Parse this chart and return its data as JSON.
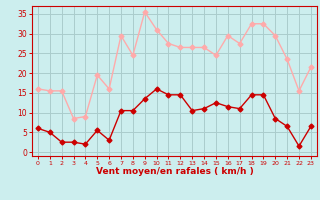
{
  "x": [
    0,
    1,
    2,
    3,
    4,
    5,
    6,
    7,
    8,
    9,
    10,
    11,
    12,
    13,
    14,
    15,
    16,
    17,
    18,
    19,
    20,
    21,
    22,
    23
  ],
  "mean_wind": [
    6,
    5,
    2.5,
    2.5,
    2,
    5.5,
    3,
    10.5,
    10.5,
    13.5,
    16,
    14.5,
    14.5,
    10.5,
    11,
    12.5,
    11.5,
    11,
    14.5,
    14.5,
    8.5,
    6.5,
    1.5,
    6.5
  ],
  "gust_wind": [
    16,
    15.5,
    15.5,
    8.5,
    9,
    19.5,
    16,
    29.5,
    24.5,
    35.5,
    31,
    27.5,
    26.5,
    26.5,
    26.5,
    24.5,
    29.5,
    27.5,
    32.5,
    32.5,
    29.5,
    23.5,
    15.5,
    21.5
  ],
  "mean_color": "#cc0000",
  "gust_color": "#ffaaaa",
  "background_color": "#cceeee",
  "grid_color": "#aacccc",
  "xlabel": "Vent moyen/en rafales ( km/h )",
  "xlabel_color": "#cc0000",
  "ylabel_ticks": [
    0,
    5,
    10,
    15,
    20,
    25,
    30,
    35
  ],
  "ylim": [
    -1,
    37
  ],
  "xlim": [
    -0.5,
    23.5
  ],
  "tick_color": "#cc0000",
  "markersize": 2.5,
  "linewidth": 1.0
}
